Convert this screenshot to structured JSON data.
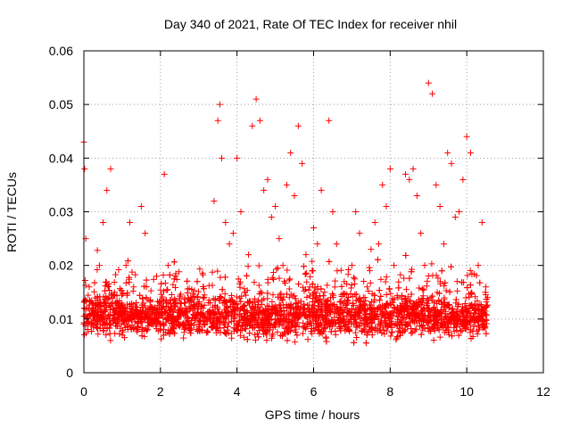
{
  "chart_data": {
    "type": "scatter",
    "title": "Day 340 of 2021, Rate Of TEC Index for receiver nhil",
    "xlabel": "GPS time / hours",
    "ylabel": "ROTI / TECUs",
    "xlim": [
      0,
      12
    ],
    "ylim": [
      0,
      0.06
    ],
    "xticks": [
      0,
      2,
      4,
      6,
      8,
      10,
      12
    ],
    "xtick_labels": [
      "0",
      "2",
      "4",
      "6",
      "8",
      "10",
      "12"
    ],
    "yticks": [
      0,
      0.01,
      0.02,
      0.03,
      0.04,
      0.05,
      0.06
    ],
    "ytick_labels": [
      "0",
      "0.01",
      "0.02",
      "0.03",
      "0.04",
      "0.05",
      "0.06"
    ],
    "grid": true,
    "marker": "+",
    "color": "#ff0000",
    "series": [
      {
        "name": "ROTI",
        "x": [
          0.0,
          0.02,
          0.05,
          0.08,
          0.1,
          0.2,
          0.3,
          0.4,
          0.5,
          0.6,
          0.7,
          0.8,
          0.9,
          1.0,
          1.1,
          1.2,
          1.3,
          1.4,
          1.5,
          1.6,
          1.7,
          1.8,
          1.9,
          2.0,
          2.1,
          2.2,
          2.3,
          2.4,
          2.5,
          2.6,
          2.7,
          2.8,
          2.9,
          3.0,
          3.1,
          3.2,
          3.3,
          3.4,
          3.5,
          3.55,
          3.6,
          3.7,
          3.8,
          3.9,
          4.0,
          4.1,
          4.2,
          4.3,
          4.4,
          4.5,
          4.6,
          4.7,
          4.8,
          4.9,
          5.0,
          5.1,
          5.2,
          5.3,
          5.4,
          5.5,
          5.6,
          5.7,
          5.8,
          5.9,
          6.0,
          6.1,
          6.2,
          6.3,
          6.4,
          6.5,
          6.6,
          6.7,
          6.8,
          6.9,
          7.0,
          7.1,
          7.2,
          7.3,
          7.4,
          7.5,
          7.6,
          7.7,
          7.8,
          7.9,
          8.0,
          8.1,
          8.2,
          8.3,
          8.4,
          8.5,
          8.6,
          8.7,
          8.8,
          8.9,
          9.0,
          9.1,
          9.2,
          9.3,
          9.4,
          9.5,
          9.6,
          9.7,
          9.8,
          9.9,
          10.0,
          10.1,
          10.2,
          10.3,
          10.4,
          10.5
        ],
        "y": [
          0.043,
          0.038,
          0.025,
          0.012,
          0.01,
          0.011,
          0.009,
          0.013,
          0.028,
          0.034,
          0.038,
          0.015,
          0.012,
          0.01,
          0.02,
          0.028,
          0.016,
          0.011,
          0.031,
          0.026,
          0.012,
          0.009,
          0.018,
          0.013,
          0.037,
          0.02,
          0.012,
          0.01,
          0.011,
          0.009,
          0.01,
          0.008,
          0.012,
          0.009,
          0.011,
          0.01,
          0.013,
          0.032,
          0.047,
          0.05,
          0.04,
          0.028,
          0.024,
          0.026,
          0.04,
          0.03,
          0.015,
          0.022,
          0.046,
          0.051,
          0.047,
          0.034,
          0.036,
          0.029,
          0.031,
          0.025,
          0.02,
          0.035,
          0.041,
          0.033,
          0.046,
          0.039,
          0.022,
          0.016,
          0.027,
          0.024,
          0.034,
          0.012,
          0.047,
          0.03,
          0.024,
          0.011,
          0.017,
          0.013,
          0.02,
          0.03,
          0.026,
          0.014,
          0.016,
          0.023,
          0.028,
          0.024,
          0.035,
          0.031,
          0.038,
          0.02,
          0.014,
          0.012,
          0.037,
          0.036,
          0.038,
          0.033,
          0.026,
          0.02,
          0.054,
          0.052,
          0.035,
          0.031,
          0.024,
          0.041,
          0.039,
          0.029,
          0.03,
          0.036,
          0.044,
          0.041,
          0.011,
          0.02,
          0.028,
          0.016
        ]
      }
    ],
    "dense_band": {
      "x_range": [
        0.0,
        10.55
      ],
      "y_range": [
        0.005,
        0.016
      ],
      "point_count": 3200,
      "seed": 340
    }
  }
}
